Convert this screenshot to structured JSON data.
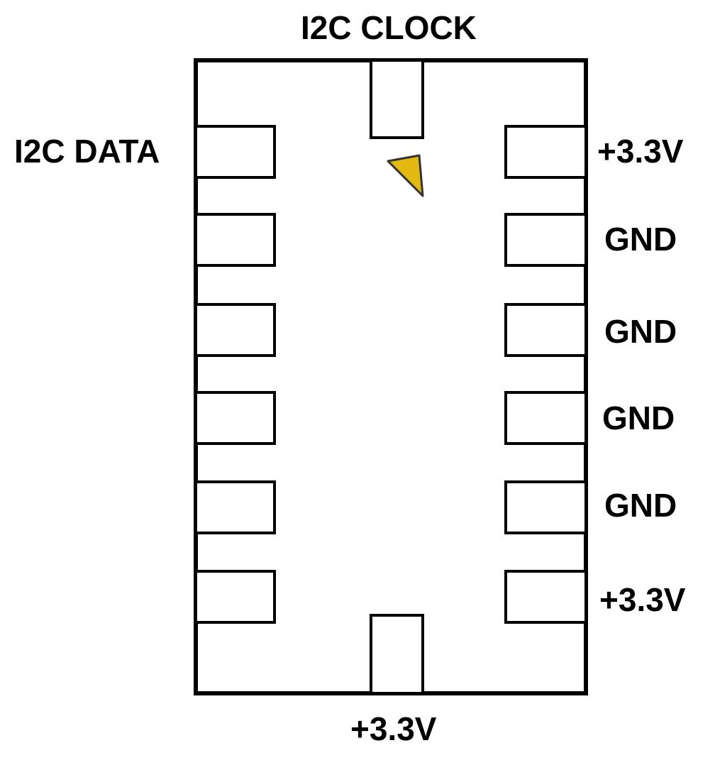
{
  "colors": {
    "outline": "#000000",
    "background": "#ffffff",
    "pin1_marker": "#e2b811"
  },
  "labels": {
    "top": "I2C CLOCK",
    "bottom": "+3.3V",
    "left": [
      "I2C DATA"
    ],
    "right": [
      "+3.3V",
      "GND",
      "GND",
      "GND",
      "GND",
      "+3.3V"
    ]
  }
}
